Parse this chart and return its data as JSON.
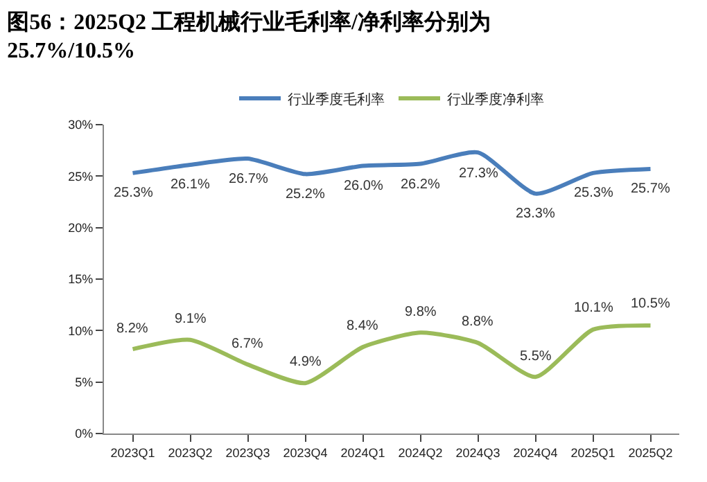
{
  "chart_data": {
    "type": "line",
    "title": "图56：2025Q2 工程机械行业毛利率/净利率分别为25.7%/10.5%",
    "categories": [
      "2023Q1",
      "2023Q2",
      "2023Q3",
      "2023Q4",
      "2024Q1",
      "2024Q2",
      "2024Q3",
      "2024Q4",
      "2025Q1",
      "2025Q2"
    ],
    "series": [
      {
        "name": "行业季度毛利率",
        "color": "#4a7ebb",
        "values": [
          25.3,
          26.1,
          26.7,
          25.2,
          26.0,
          26.2,
          27.3,
          23.3,
          25.3,
          25.7
        ],
        "value_labels": [
          "25.3%",
          "26.1%",
          "26.7%",
          "25.2%",
          "26.0%",
          "26.2%",
          "27.3%",
          "23.3%",
          "25.3%",
          "25.7%"
        ]
      },
      {
        "name": "行业季度净利率",
        "color": "#9bbb59",
        "values": [
          8.2,
          9.1,
          6.7,
          4.9,
          8.4,
          9.8,
          8.8,
          5.5,
          10.1,
          10.5
        ],
        "value_labels": [
          "8.2%",
          "9.1%",
          "6.7%",
          "4.9%",
          "8.4%",
          "9.8%",
          "8.8%",
          "5.5%",
          "10.1%",
          "10.5%"
        ]
      }
    ],
    "ylim": [
      0,
      30
    ],
    "yticks": [
      {
        "value": 0,
        "label": "0%"
      },
      {
        "value": 5,
        "label": "5%"
      },
      {
        "value": 10,
        "label": "10%"
      },
      {
        "value": 15,
        "label": "15%"
      },
      {
        "value": 20,
        "label": "20%"
      },
      {
        "value": 25,
        "label": "25%"
      },
      {
        "value": 30,
        "label": "30%"
      }
    ],
    "legend": "top",
    "marker": "none",
    "line_style": "solid"
  }
}
